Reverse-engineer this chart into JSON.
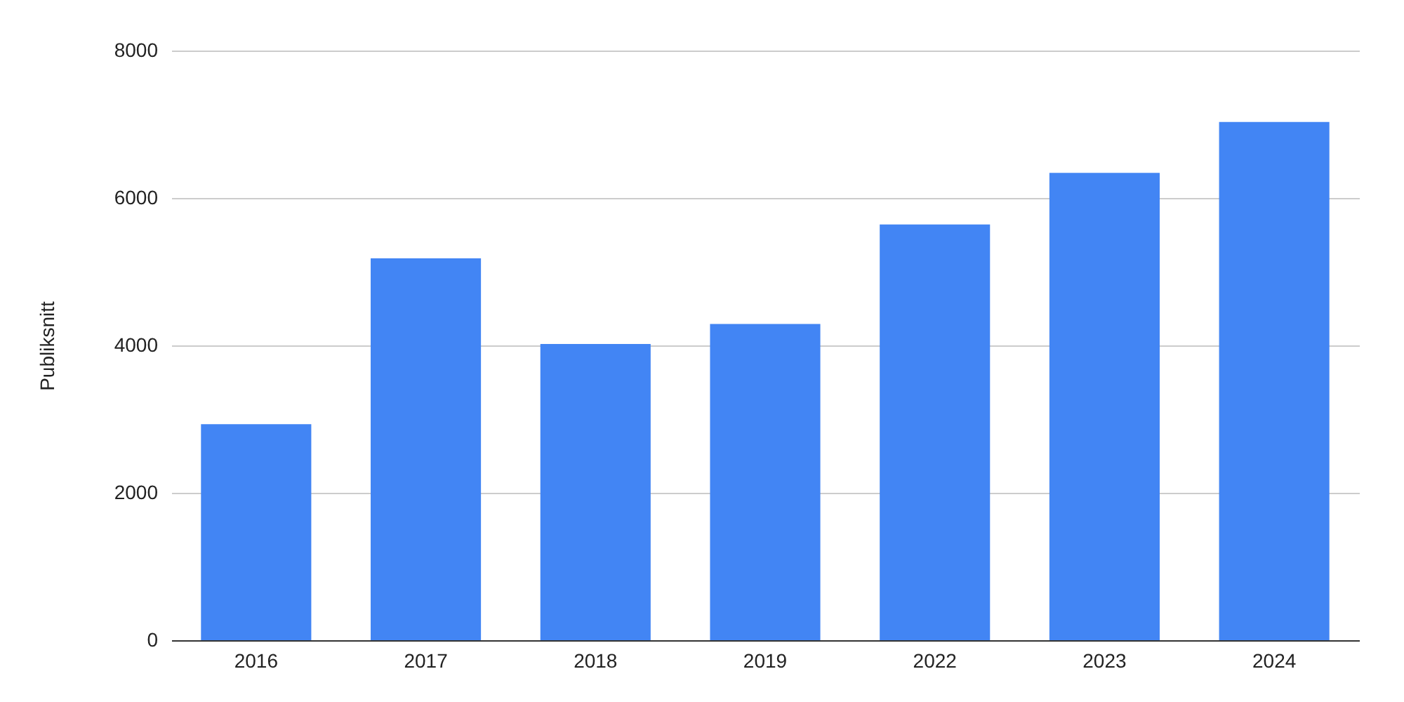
{
  "chart_data": {
    "type": "bar",
    "ylabel": "Publiksnitt",
    "categories": [
      "2016",
      "2017",
      "2018",
      "2019",
      "2022",
      "2023",
      "2024"
    ],
    "values": [
      2930,
      5180,
      4020,
      4290,
      5640,
      6340,
      7030
    ],
    "color": "#4285f4",
    "ylim": [
      0,
      8000
    ],
    "yticks": [
      0,
      2000,
      4000,
      6000,
      8000
    ],
    "grid": "y"
  }
}
